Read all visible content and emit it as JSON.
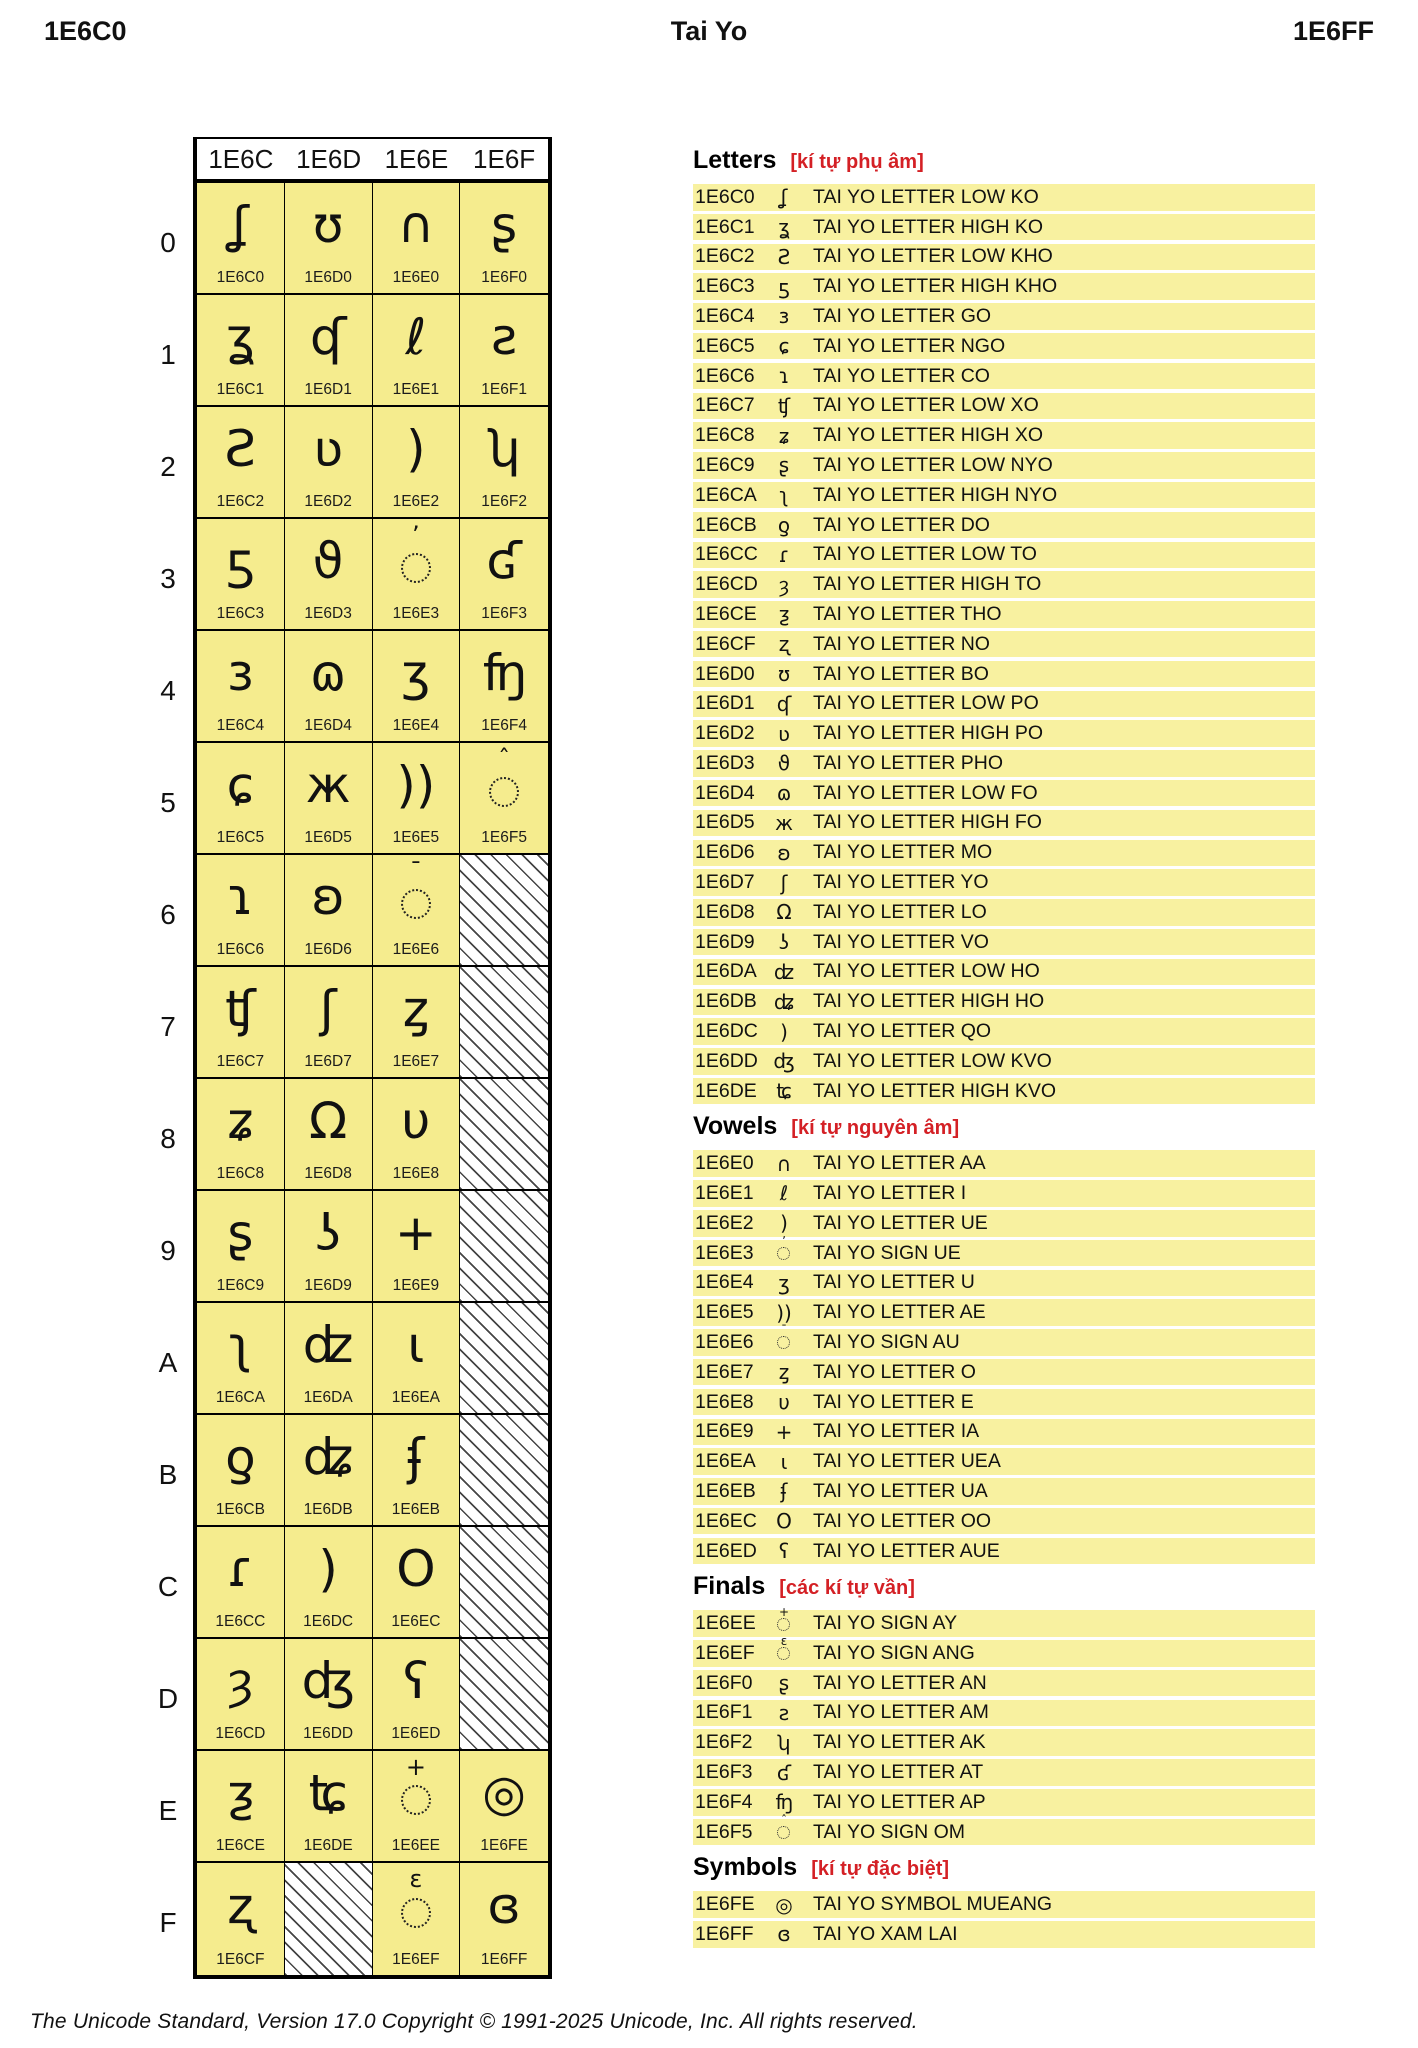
{
  "page": {
    "header_left": "1E6C0",
    "header_center": "Tai Yo",
    "header_right": "1E6FF",
    "footer": "The Unicode Standard, Version 17.0 Copyright © 1991-2025 Unicode, Inc. All rights reserved."
  },
  "colors": {
    "chart_cell_bg": "#F5EC8E",
    "list_band_bg": "#F8F1A0",
    "heading_red": "#D42025",
    "ink": "#111111",
    "hatch_line": "#454545"
  },
  "chart": {
    "column_headers": [
      "1E6C",
      "1E6D",
      "1E6E",
      "1E6F"
    ],
    "row_headers": [
      "0",
      "1",
      "2",
      "3",
      "4",
      "5",
      "6",
      "7",
      "8",
      "9",
      "A",
      "B",
      "C",
      "D",
      "E",
      "F"
    ],
    "cells": [
      {
        "code": "1E6C0",
        "glyph": "ʆ"
      },
      {
        "code": "1E6D0",
        "glyph": "ʊ"
      },
      {
        "code": "1E6E0",
        "glyph": "∩"
      },
      {
        "code": "1E6F0",
        "glyph": "ʂ"
      },
      {
        "code": "1E6C1",
        "glyph": "ʓ"
      },
      {
        "code": "1E6D1",
        "glyph": "ʠ"
      },
      {
        "code": "1E6E1",
        "glyph": "ℓ"
      },
      {
        "code": "1E6F1",
        "glyph": "ƨ"
      },
      {
        "code": "1E6C2",
        "glyph": "Ƨ"
      },
      {
        "code": "1E6D2",
        "glyph": "ʋ"
      },
      {
        "code": "1E6E2",
        "glyph": ")"
      },
      {
        "code": "1E6F2",
        "glyph": "ʮ"
      },
      {
        "code": "1E6C3",
        "glyph": "ƽ"
      },
      {
        "code": "1E6D3",
        "glyph": "ϑ"
      },
      {
        "code": "1E6E3",
        "sign": true,
        "mark": "ʼ"
      },
      {
        "code": "1E6F3",
        "glyph": "ʛ"
      },
      {
        "code": "1E6C4",
        "glyph": "ɜ"
      },
      {
        "code": "1E6D4",
        "glyph": "ɷ"
      },
      {
        "code": "1E6E4",
        "glyph": "ʒ"
      },
      {
        "code": "1E6F4",
        "glyph": "ʩ"
      },
      {
        "code": "1E6C5",
        "glyph": "ɕ"
      },
      {
        "code": "1E6D5",
        "glyph": "ж"
      },
      {
        "code": "1E6E5",
        "glyph": "))"
      },
      {
        "code": "1E6F5",
        "sign": true,
        "mark": "ˆ"
      },
      {
        "code": "1E6C6",
        "glyph": "ɿ"
      },
      {
        "code": "1E6D6",
        "glyph": "ʚ"
      },
      {
        "code": "1E6E6",
        "sign": true,
        "mark": "ˉ"
      },
      {
        "reserved": true
      },
      {
        "code": "1E6C7",
        "glyph": "ʧ"
      },
      {
        "code": "1E6D7",
        "glyph": "ʃ"
      },
      {
        "code": "1E6E7",
        "glyph": "ȥ"
      },
      {
        "reserved": true
      },
      {
        "code": "1E6C8",
        "glyph": "ʑ"
      },
      {
        "code": "1E6D8",
        "glyph": "Ω"
      },
      {
        "code": "1E6E8",
        "glyph": "υ"
      },
      {
        "reserved": true
      },
      {
        "code": "1E6C9",
        "glyph": "ʂ"
      },
      {
        "code": "1E6D9",
        "glyph": "ʖ"
      },
      {
        "code": "1E6E9",
        "glyph": "+"
      },
      {
        "reserved": true
      },
      {
        "code": "1E6CA",
        "glyph": "ʅ"
      },
      {
        "code": "1E6DA",
        "glyph": "ʣ"
      },
      {
        "code": "1E6EA",
        "glyph": "ɩ"
      },
      {
        "reserved": true
      },
      {
        "code": "1E6CB",
        "glyph": "ƍ"
      },
      {
        "code": "1E6DB",
        "glyph": "ʥ"
      },
      {
        "code": "1E6EB",
        "glyph": "ʄ"
      },
      {
        "reserved": true
      },
      {
        "code": "1E6CC",
        "glyph": "ɾ"
      },
      {
        "code": "1E6DC",
        "glyph": ")"
      },
      {
        "code": "1E6EC",
        "glyph": "Ο"
      },
      {
        "reserved": true
      },
      {
        "code": "1E6CD",
        "glyph": "ȝ"
      },
      {
        "code": "1E6DD",
        "glyph": "ʤ"
      },
      {
        "code": "1E6ED",
        "glyph": "ʕ"
      },
      {
        "reserved": true
      },
      {
        "code": "1E6CE",
        "glyph": "ƺ"
      },
      {
        "code": "1E6DE",
        "glyph": "ʨ"
      },
      {
        "code": "1E6EE",
        "sign": true,
        "mark": "+"
      },
      {
        "code": "1E6FE",
        "glyph": "◎"
      },
      {
        "code": "1E6CF",
        "glyph": "ʐ"
      },
      {
        "reserved": true
      },
      {
        "code": "1E6EF",
        "sign": true,
        "mark": "ɛ"
      },
      {
        "code": "1E6FF",
        "glyph": "ɞ"
      }
    ]
  },
  "sections": [
    {
      "title": "Letters",
      "subtitle": "[kí tự phụ âm]",
      "rows": [
        {
          "code": "1E6C0",
          "glyph": "ʆ",
          "name": "TAI YO LETTER LOW KO"
        },
        {
          "code": "1E6C1",
          "glyph": "ʓ",
          "name": "TAI YO LETTER HIGH KO"
        },
        {
          "code": "1E6C2",
          "glyph": "Ƨ",
          "name": "TAI YO LETTER LOW KHO"
        },
        {
          "code": "1E6C3",
          "glyph": "ƽ",
          "name": "TAI YO LETTER HIGH KHO"
        },
        {
          "code": "1E6C4",
          "glyph": "ɜ",
          "name": "TAI YO LETTER GO"
        },
        {
          "code": "1E6C5",
          "glyph": "ɕ",
          "name": "TAI YO LETTER NGO"
        },
        {
          "code": "1E6C6",
          "glyph": "ɿ",
          "name": "TAI YO LETTER CO"
        },
        {
          "code": "1E6C7",
          "glyph": "ʧ",
          "name": "TAI YO LETTER LOW XO"
        },
        {
          "code": "1E6C8",
          "glyph": "ʑ",
          "name": "TAI YO LETTER HIGH XO"
        },
        {
          "code": "1E6C9",
          "glyph": "ʂ",
          "name": "TAI YO LETTER LOW NYO"
        },
        {
          "code": "1E6CA",
          "glyph": "ʅ",
          "name": "TAI YO LETTER HIGH NYO"
        },
        {
          "code": "1E6CB",
          "glyph": "ƍ",
          "name": "TAI YO LETTER DO"
        },
        {
          "code": "1E6CC",
          "glyph": "ɾ",
          "name": "TAI YO LETTER LOW TO"
        },
        {
          "code": "1E6CD",
          "glyph": "ȝ",
          "name": "TAI YO LETTER HIGH TO"
        },
        {
          "code": "1E6CE",
          "glyph": "ƺ",
          "name": "TAI YO LETTER THO"
        },
        {
          "code": "1E6CF",
          "glyph": "ʐ",
          "name": "TAI YO LETTER NO"
        },
        {
          "code": "1E6D0",
          "glyph": "ʊ",
          "name": "TAI YO LETTER BO"
        },
        {
          "code": "1E6D1",
          "glyph": "ʠ",
          "name": "TAI YO LETTER LOW PO"
        },
        {
          "code": "1E6D2",
          "glyph": "ʋ",
          "name": "TAI YO LETTER HIGH PO"
        },
        {
          "code": "1E6D3",
          "glyph": "ϑ",
          "name": "TAI YO LETTER PHO"
        },
        {
          "code": "1E6D4",
          "glyph": "ɷ",
          "name": "TAI YO LETTER LOW FO"
        },
        {
          "code": "1E6D5",
          "glyph": "ж",
          "name": "TAI YO LETTER HIGH FO"
        },
        {
          "code": "1E6D6",
          "glyph": "ʚ",
          "name": "TAI YO LETTER MO"
        },
        {
          "code": "1E6D7",
          "glyph": "ʃ",
          "name": "TAI YO LETTER YO"
        },
        {
          "code": "1E6D8",
          "glyph": "Ω",
          "name": "TAI YO LETTER LO"
        },
        {
          "code": "1E6D9",
          "glyph": "ʖ",
          "name": "TAI YO LETTER VO"
        },
        {
          "code": "1E6DA",
          "glyph": "ʣ",
          "name": "TAI YO LETTER LOW HO"
        },
        {
          "code": "1E6DB",
          "glyph": "ʥ",
          "name": "TAI YO LETTER HIGH HO"
        },
        {
          "code": "1E6DC",
          "glyph": ")",
          "name": "TAI YO LETTER QO"
        },
        {
          "code": "1E6DD",
          "glyph": "ʤ",
          "name": "TAI YO LETTER LOW KVO"
        },
        {
          "code": "1E6DE",
          "glyph": "ʨ",
          "name": "TAI YO LETTER HIGH KVO"
        }
      ]
    },
    {
      "title": "Vowels",
      "subtitle": "[kí tự nguyên âm]",
      "rows": [
        {
          "code": "1E6E0",
          "glyph": "∩",
          "name": "TAI YO LETTER AA"
        },
        {
          "code": "1E6E1",
          "glyph": "ℓ",
          "name": "TAI YO LETTER I"
        },
        {
          "code": "1E6E2",
          "glyph": ")",
          "name": "TAI YO LETTER UE"
        },
        {
          "code": "1E6E3",
          "sign": true,
          "mark": "ʼ",
          "name": "TAI YO SIGN UE"
        },
        {
          "code": "1E6E4",
          "glyph": "ʒ",
          "name": "TAI YO LETTER U"
        },
        {
          "code": "1E6E5",
          "glyph": "))",
          "name": "TAI YO LETTER AE"
        },
        {
          "code": "1E6E6",
          "sign": true,
          "mark": "ˉ",
          "name": "TAI YO SIGN AU"
        },
        {
          "code": "1E6E7",
          "glyph": "ȥ",
          "name": "TAI YO LETTER O"
        },
        {
          "code": "1E6E8",
          "glyph": "υ",
          "name": "TAI YO LETTER E"
        },
        {
          "code": "1E6E9",
          "glyph": "+",
          "name": "TAI YO LETTER IA"
        },
        {
          "code": "1E6EA",
          "glyph": "ɩ",
          "name": "TAI YO LETTER UEA"
        },
        {
          "code": "1E6EB",
          "glyph": "ʄ",
          "name": "TAI YO LETTER UA"
        },
        {
          "code": "1E6EC",
          "glyph": "Ο",
          "name": "TAI YO LETTER OO"
        },
        {
          "code": "1E6ED",
          "glyph": "ʕ",
          "name": "TAI YO LETTER AUE"
        }
      ]
    },
    {
      "title": "Finals",
      "subtitle": "[các kí tự vần]",
      "rows": [
        {
          "code": "1E6EE",
          "sign": true,
          "mark": "+",
          "name": "TAI YO SIGN AY"
        },
        {
          "code": "1E6EF",
          "sign": true,
          "mark": "ɛ",
          "name": "TAI YO SIGN ANG"
        },
        {
          "code": "1E6F0",
          "glyph": "ʂ",
          "name": "TAI YO LETTER AN"
        },
        {
          "code": "1E6F1",
          "glyph": "ƨ",
          "name": "TAI YO LETTER AM"
        },
        {
          "code": "1E6F2",
          "glyph": "ʮ",
          "name": "TAI YO LETTER AK"
        },
        {
          "code": "1E6F3",
          "glyph": "ʛ",
          "name": "TAI YO LETTER AT"
        },
        {
          "code": "1E6F4",
          "glyph": "ʩ",
          "name": "TAI YO LETTER AP"
        },
        {
          "code": "1E6F5",
          "sign": true,
          "mark": "ˆ",
          "name": "TAI YO SIGN OM"
        }
      ]
    },
    {
      "title": "Symbols",
      "subtitle": "[kí tự đặc biệt]",
      "rows": [
        {
          "code": "1E6FE",
          "glyph": "◎",
          "name": "TAI YO SYMBOL MUEANG"
        },
        {
          "code": "1E6FF",
          "glyph": "ɞ",
          "name": "TAI YO XAM LAI"
        }
      ]
    }
  ]
}
